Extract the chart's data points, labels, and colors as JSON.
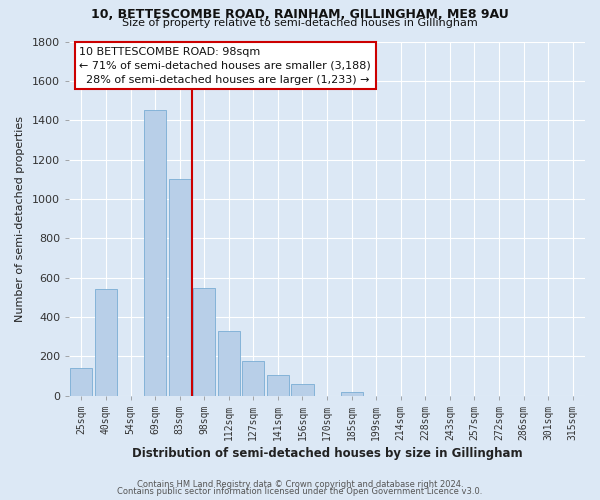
{
  "title_line1": "10, BETTESCOMBE ROAD, RAINHAM, GILLINGHAM, ME8 9AU",
  "title_line2": "Size of property relative to semi-detached houses in Gillingham",
  "bar_labels": [
    "25sqm",
    "40sqm",
    "54sqm",
    "69sqm",
    "83sqm",
    "98sqm",
    "112sqm",
    "127sqm",
    "141sqm",
    "156sqm",
    "170sqm",
    "185sqm",
    "199sqm",
    "214sqm",
    "228sqm",
    "243sqm",
    "257sqm",
    "272sqm",
    "286sqm",
    "301sqm",
    "315sqm"
  ],
  "bar_heights": [
    140,
    540,
    0,
    1450,
    1100,
    550,
    330,
    175,
    105,
    60,
    0,
    18,
    0,
    0,
    0,
    0,
    0,
    0,
    0,
    0,
    0
  ],
  "bar_color": "#b8cfe8",
  "bar_edge_color": "#7aadd4",
  "vline_idx": 5,
  "pct_smaller": 71,
  "num_smaller": 3188,
  "pct_larger": 28,
  "num_larger": 1233,
  "annotation_title": "10 BETTESCOMBE ROAD: 98sqm",
  "vline_color": "#cc0000",
  "xlabel": "Distribution of semi-detached houses by size in Gillingham",
  "ylabel": "Number of semi-detached properties",
  "ylim": [
    0,
    1800
  ],
  "yticks": [
    0,
    200,
    400,
    600,
    800,
    1000,
    1200,
    1400,
    1600,
    1800
  ],
  "footnote1": "Contains HM Land Registry data © Crown copyright and database right 2024.",
  "footnote2": "Contains public sector information licensed under the Open Government Licence v3.0.",
  "bg_color": "#dce8f5",
  "grid_color": "#ffffff"
}
